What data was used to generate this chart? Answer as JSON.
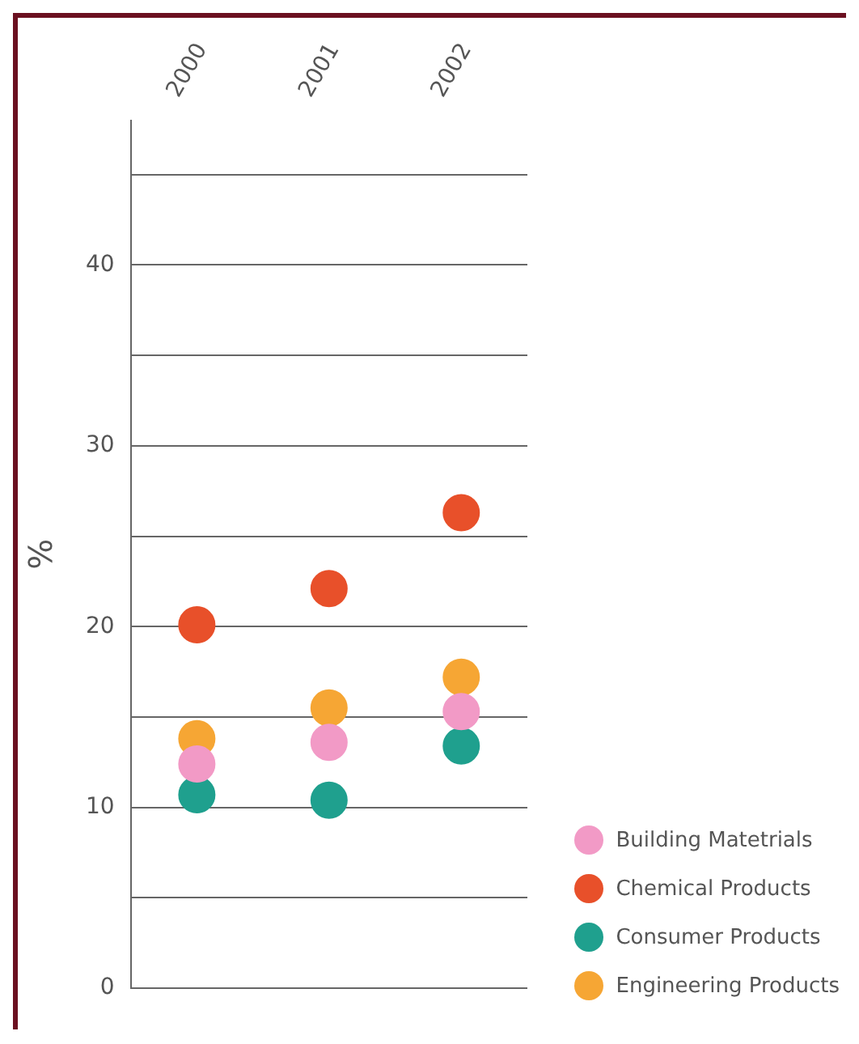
{
  "chart_data": {
    "type": "scatter",
    "ylabel": "%",
    "categories": [
      "2000",
      "2001",
      "2002"
    ],
    "series": [
      {
        "name": "Building Matetrials",
        "color": "#f29ac6",
        "values": [
          12.4,
          13.6,
          15.3
        ]
      },
      {
        "name": "Chemical Products",
        "color": "#e8502a",
        "values": [
          20.1,
          22.1,
          26.3
        ]
      },
      {
        "name": "Consumer Products",
        "color": "#1fa08e",
        "values": [
          10.7,
          10.4,
          13.4
        ]
      },
      {
        "name": "Engineering Products",
        "color": "#f6a634",
        "values": [
          13.8,
          15.5,
          17.2
        ]
      }
    ],
    "ylim": [
      0,
      48
    ],
    "yticks": [
      0,
      {
        "value": 5,
        "label": null
      },
      10,
      {
        "value": 15,
        "label": null
      },
      20,
      {
        "value": 25,
        "label": null
      },
      30,
      {
        "value": 35,
        "label": null
      },
      40,
      {
        "value": 45,
        "label": null
      }
    ],
    "grid": "y",
    "legend": "bottom right",
    "marker": "circle"
  }
}
